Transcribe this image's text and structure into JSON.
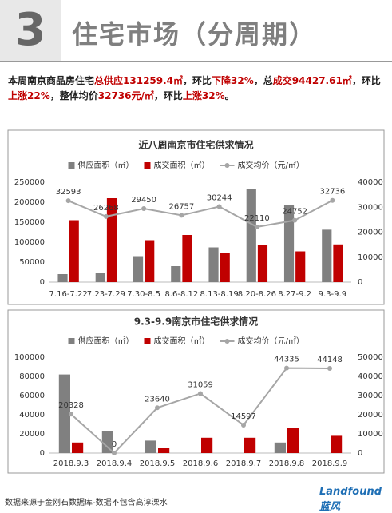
{
  "header": {
    "number": "3",
    "title": "住宅市场（分周期）"
  },
  "summary": [
    "本周南京商品房住宅",
    "总供应131259.4㎡",
    "，环比",
    "下降32%",
    "，总",
    "成交94427.61㎡",
    "，环比",
    "上涨22%",
    "，整体均价",
    "32736元/㎡",
    "，环比",
    "上涨32%",
    "。"
  ],
  "chart_data": [
    {
      "type": "bar",
      "title": "近八周南京市住宅供求情况",
      "categories": [
        "7.16-7.22",
        "7.23-7.29",
        "7.30-8.5",
        "8.6-8.12",
        "8.13-8.19",
        "8.20-8.26",
        "8.27-9.2",
        "9.3-9.9"
      ],
      "series": [
        {
          "name": "供应面积（㎡）",
          "color": "#808080",
          "values": [
            20000,
            22000,
            63000,
            40000,
            87000,
            232000,
            192000,
            131259.4
          ]
        },
        {
          "name": "成交面积（㎡）",
          "color": "#c00000",
          "values": [
            155000,
            210000,
            105000,
            118000,
            74000,
            94000,
            77000,
            94427.61
          ]
        },
        {
          "name": "成交均价（元/㎡）",
          "color": "#a6a6a6",
          "type": "line",
          "axis": "y2",
          "values": [
            32593,
            26268,
            29450,
            26757,
            30244,
            22110,
            24752,
            32736
          ]
        }
      ],
      "ylim": [
        0,
        250000
      ],
      "yticks": [
        0,
        50000,
        100000,
        150000,
        200000,
        250000
      ],
      "y2lim": [
        0,
        40000
      ],
      "y2ticks": [
        0,
        10000,
        20000,
        30000,
        40000
      ],
      "legend": "top"
    },
    {
      "type": "bar",
      "title": "9.3-9.9南京市住宅供求情况",
      "categories": [
        "2018.9.3",
        "2018.9.4",
        "2018.9.5",
        "2018.9.6",
        "2018.9.7",
        "2018.9.8",
        "2018.9.9"
      ],
      "series": [
        {
          "name": "供应面积（㎡）",
          "color": "#808080",
          "values": [
            82000,
            23000,
            13000,
            0,
            0,
            11000,
            0
          ]
        },
        {
          "name": "成交面积（㎡）",
          "color": "#c00000",
          "values": [
            11000,
            0,
            5000,
            16000,
            16000,
            26000,
            18000
          ]
        },
        {
          "name": "成交均价（元/㎡）",
          "color": "#a6a6a6",
          "type": "line",
          "axis": "y2",
          "values": [
            20328,
            0,
            23640,
            31059,
            14597,
            44335,
            44148
          ]
        }
      ],
      "ylim": [
        0,
        100000
      ],
      "yticks": [
        0,
        20000,
        40000,
        60000,
        80000,
        100000
      ],
      "y2lim": [
        0,
        50000
      ],
      "y2ticks": [
        0,
        10000,
        20000,
        30000,
        40000,
        50000
      ],
      "legend": "top"
    }
  ],
  "footer": {
    "source": "数据来源于金刚石数据库-数据不包含高淳溧水",
    "logo": "Landfound蓝风"
  }
}
